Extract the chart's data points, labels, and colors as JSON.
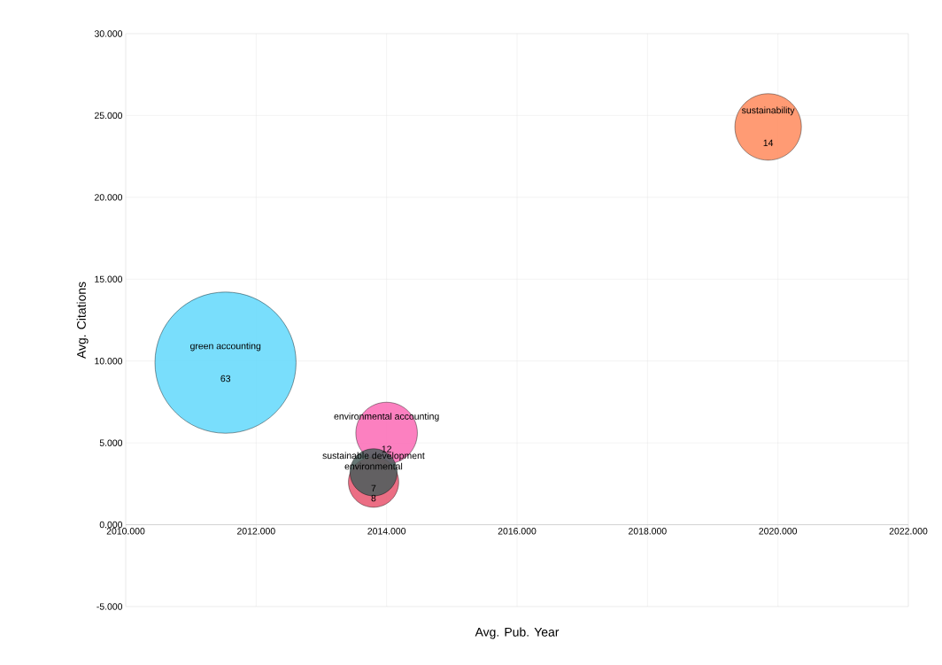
{
  "chart_data": {
    "type": "bubble",
    "xlabel": "Avg. Pub. Year",
    "ylabel": "Avg. Citations",
    "xlim": [
      2010,
      2022
    ],
    "ylim": [
      -5,
      30
    ],
    "xticks": [
      {
        "value": 2010,
        "label": "2010.000"
      },
      {
        "value": 2012,
        "label": "2012.000"
      },
      {
        "value": 2014,
        "label": "2014.000"
      },
      {
        "value": 2016,
        "label": "2016.000"
      },
      {
        "value": 2018,
        "label": "2018.000"
      },
      {
        "value": 2020,
        "label": "2020.000"
      },
      {
        "value": 2022,
        "label": "2022.000"
      }
    ],
    "yticks": [
      {
        "value": -5,
        "label": "-5.000"
      },
      {
        "value": 0,
        "label": "0.000"
      },
      {
        "value": 5,
        "label": "5.000"
      },
      {
        "value": 10,
        "label": "10.000"
      },
      {
        "value": 15,
        "label": "15.000"
      },
      {
        "value": 20,
        "label": "20.000"
      },
      {
        "value": 25,
        "label": "25.000"
      },
      {
        "value": 30,
        "label": "30.000"
      }
    ],
    "grid": true,
    "series": [
      {
        "name": "green accounting",
        "color": "#62d8fc",
        "x": [
          2011.53
        ],
        "values": [
          9.9
        ],
        "sizes": [
          63
        ],
        "value_labels": [
          "63"
        ]
      },
      {
        "name": "sustainability",
        "color": "#ff8a5c",
        "x": [
          2019.85
        ],
        "values": [
          24.3
        ],
        "sizes": [
          14
        ],
        "value_labels": [
          "14"
        ]
      },
      {
        "name": "environmental accounting",
        "color": "#fc6ab5",
        "x": [
          2014.0
        ],
        "values": [
          5.6
        ],
        "sizes": [
          12
        ],
        "value_labels": [
          "12"
        ]
      },
      {
        "name": "environmental",
        "color": "#e8556f",
        "x": [
          2013.8
        ],
        "values": [
          2.6
        ],
        "sizes": [
          8
        ],
        "value_labels": [
          "8"
        ]
      },
      {
        "name": "sustainable development",
        "color": "#4a5e5c",
        "x": [
          2013.8
        ],
        "values": [
          3.2
        ],
        "sizes": [
          7
        ],
        "value_labels": [
          "7"
        ]
      }
    ]
  }
}
